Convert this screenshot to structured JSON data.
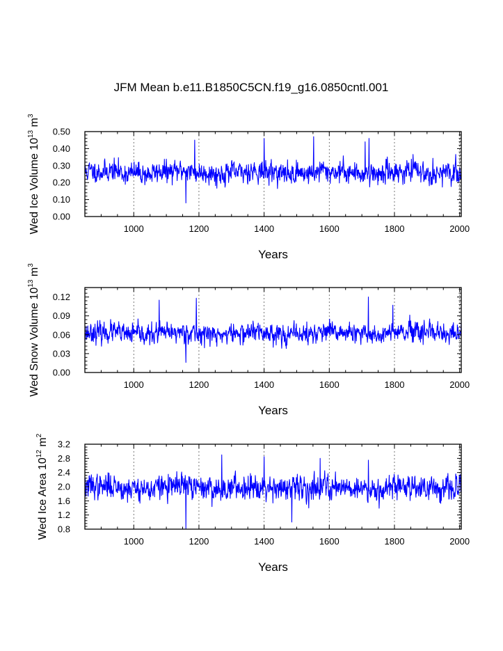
{
  "figure": {
    "title": "JFM Mean b.e11.B1850C5CN.f19_g16.0850cntl.001"
  },
  "chart_data": [
    {
      "type": "line",
      "name": "ice-volume",
      "xlabel": "Years",
      "ylabel_parts": [
        "Wed Ice Volume 10",
        "13",
        " m",
        "3"
      ],
      "xlim": [
        850,
        2005
      ],
      "ylim": [
        0.0,
        0.5
      ],
      "xticks": [
        1000,
        1200,
        1400,
        1600,
        1800,
        2000
      ],
      "xtick_labels": [
        "1000",
        "1200",
        "1400",
        "1600",
        "1800",
        "2000"
      ],
      "yticks": [
        0.0,
        0.1,
        0.2,
        0.3,
        0.4,
        0.5
      ],
      "ytick_labels": [
        "0.00",
        "0.10",
        "0.20",
        "0.30",
        "0.40",
        "0.50"
      ],
      "grid": "vertical-dashed",
      "series": [
        {
          "name": "Wed Ice Volume",
          "color": "#0000ff",
          "x_start": 850,
          "x_end": 2005,
          "mean": 0.26,
          "spread": 0.055,
          "min": 0.08,
          "max": 0.47,
          "seed": 11,
          "notable": [
            [
              1160,
              0.08
            ],
            [
              1400,
              0.46
            ],
            [
              1552,
              0.47
            ],
            [
              1722,
              0.46
            ],
            [
              1710,
              0.44
            ],
            [
              1187,
              0.45
            ]
          ]
        }
      ]
    },
    {
      "type": "line",
      "name": "snow-volume",
      "xlabel": "Years",
      "ylabel_parts": [
        "Wed Snow Volume 10",
        "13",
        " m",
        "3"
      ],
      "xlim": [
        850,
        2005
      ],
      "ylim": [
        0.0,
        0.135
      ],
      "xticks": [
        1000,
        1200,
        1400,
        1600,
        1800,
        2000
      ],
      "xtick_labels": [
        "1000",
        "1200",
        "1400",
        "1600",
        "1800",
        "2000"
      ],
      "yticks": [
        0.0,
        0.03,
        0.06,
        0.09,
        0.12
      ],
      "ytick_labels": [
        "0.00",
        "0.03",
        "0.06",
        "0.09",
        "0.12"
      ],
      "grid": "vertical-dashed",
      "series": [
        {
          "name": "Wed Snow Volume",
          "color": "#0000ff",
          "x_start": 850,
          "x_end": 2005,
          "mean": 0.062,
          "spread": 0.014,
          "min": 0.016,
          "max": 0.12,
          "seed": 23,
          "notable": [
            [
              1160,
              0.016
            ],
            [
              1078,
              0.115
            ],
            [
              1192,
              0.118
            ],
            [
              1720,
              0.12
            ],
            [
              1795,
              0.107
            ]
          ]
        }
      ]
    },
    {
      "type": "line",
      "name": "ice-area",
      "xlabel": "Years",
      "ylabel_parts": [
        "Wed Ice Area 10",
        "12",
        " m",
        "2"
      ],
      "xlim": [
        850,
        2005
      ],
      "ylim": [
        0.8,
        3.2
      ],
      "xticks": [
        1000,
        1200,
        1400,
        1600,
        1800,
        2000
      ],
      "xtick_labels": [
        "1000",
        "1200",
        "1400",
        "1600",
        "1800",
        "2000"
      ],
      "yticks": [
        0.8,
        1.2,
        1.6,
        2.0,
        2.4,
        2.8,
        3.2
      ],
      "ytick_labels": [
        "0.8",
        "1.2",
        "1.6",
        "2.0",
        "2.4",
        "2.8",
        "3.2"
      ],
      "grid": "vertical-dashed",
      "series": [
        {
          "name": "Wed Ice Area",
          "color": "#0000ff",
          "x_start": 850,
          "x_end": 2005,
          "mean": 1.98,
          "spread": 0.3,
          "min": 0.82,
          "max": 2.9,
          "seed": 37,
          "notable": [
            [
              1160,
              0.82
            ],
            [
              1270,
              2.9
            ],
            [
              1400,
              2.85
            ],
            [
              1485,
              1.0
            ],
            [
              1572,
              2.8
            ],
            [
              1720,
              2.75
            ]
          ]
        }
      ]
    }
  ]
}
